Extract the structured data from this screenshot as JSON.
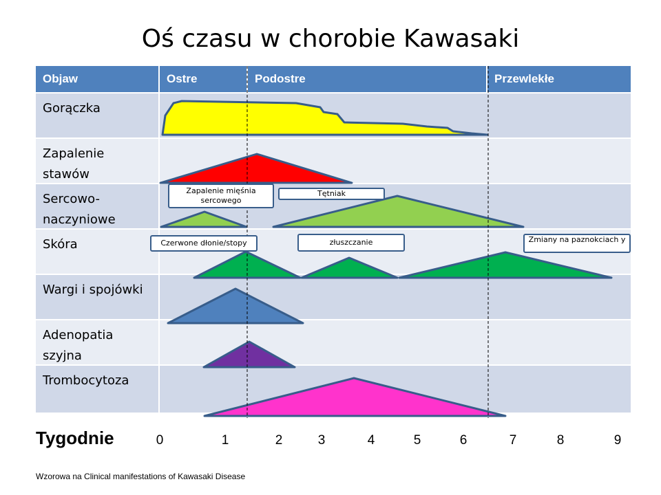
{
  "title": "Oś czasu w chorobie Kawasaki",
  "header": {
    "objaw": "Objaw",
    "ostre": "Ostre",
    "podostre": "Podostre",
    "przewlekle": "Przewlekłe"
  },
  "rows": [
    {
      "label": "Gorączka"
    },
    {
      "label": "Zapalenie stawów"
    },
    {
      "label": "Sercowo-naczyniowe"
    },
    {
      "label": "Skóra"
    },
    {
      "label": "Wargi i spojówki"
    },
    {
      "label": "Adenopatia szyjna"
    },
    {
      "label": "Trombocytoza"
    }
  ],
  "annotations": {
    "myocarditis": "Zapalenie mięśnia sercowego",
    "aneurysm": "Tętniak",
    "red_palms": "Czerwone dłonie/stopy",
    "peeling": "złuszczanie",
    "nails": "Zmiany na paznokciach y"
  },
  "axis": {
    "label": "Tygodnie",
    "ticks": [
      "0",
      "1",
      "2",
      "3",
      "4",
      "5",
      "6",
      "7",
      "8",
      "9"
    ]
  },
  "source": "Wzorowa na Clinical manifestations of Kawasaki Disease",
  "colors": {
    "header": "#4f81bd",
    "fever": "#ffff00",
    "joints": "#ff0000",
    "cardio": "#92d050",
    "skin": "#00b050",
    "lips": "#4f81bd",
    "adenopathy": "#7030a0",
    "platelets": "#ff33cc",
    "outline": "#385d8a"
  }
}
